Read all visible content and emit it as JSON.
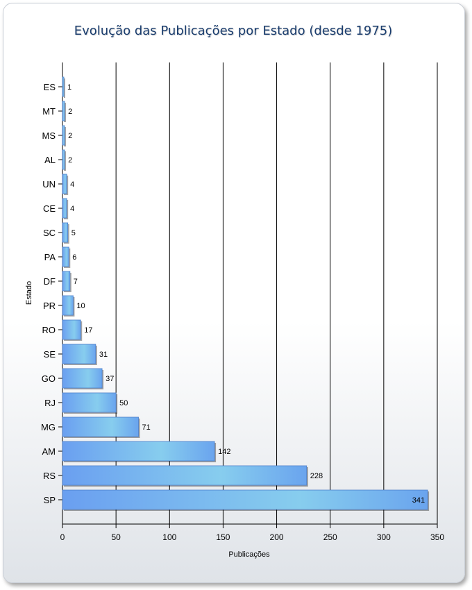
{
  "chart_data": {
    "type": "bar",
    "orientation": "horizontal",
    "title": "Evolução das Publicações por Estado (desde 1975)",
    "xlabel": "Publicações",
    "ylabel": "Estado",
    "xlim": [
      0,
      350
    ],
    "xticks": [
      0,
      50,
      100,
      150,
      200,
      250,
      300,
      350
    ],
    "grid": true,
    "categories": [
      "ES",
      "MT",
      "MS",
      "AL",
      "UN",
      "CE",
      "SC",
      "PA",
      "DF",
      "PR",
      "RO",
      "SE",
      "GO",
      "RJ",
      "MG",
      "AM",
      "RS",
      "SP"
    ],
    "values": [
      1,
      2,
      2,
      2,
      4,
      4,
      5,
      6,
      7,
      10,
      17,
      31,
      37,
      50,
      71,
      142,
      228,
      341
    ],
    "bar_colors": [
      "#6a9ff0",
      "#87cdee"
    ]
  }
}
